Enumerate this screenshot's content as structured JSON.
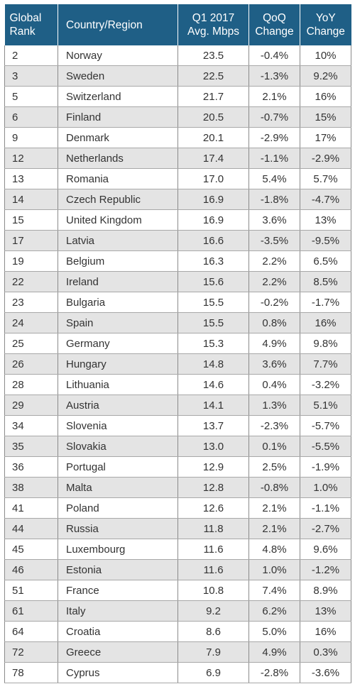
{
  "headers": {
    "rank": [
      "Global",
      "Rank"
    ],
    "country": "Country/Region",
    "speed": [
      "Q1 2017",
      "Avg. Mbps"
    ],
    "qoq": [
      "QoQ",
      "Change"
    ],
    "yoy": [
      "YoY",
      "Change"
    ]
  },
  "rows": [
    {
      "rank": "2",
      "country": "Norway",
      "speed": "23.5",
      "qoq": "-0.4%",
      "yoy": "10%"
    },
    {
      "rank": "3",
      "country": "Sweden",
      "speed": "22.5",
      "qoq": "-1.3%",
      "yoy": "9.2%"
    },
    {
      "rank": "5",
      "country": "Switzerland",
      "speed": "21.7",
      "qoq": "2.1%",
      "yoy": "16%"
    },
    {
      "rank": "6",
      "country": "Finland",
      "speed": "20.5",
      "qoq": "-0.7%",
      "yoy": "15%"
    },
    {
      "rank": "9",
      "country": "Denmark",
      "speed": "20.1",
      "qoq": "-2.9%",
      "yoy": "17%"
    },
    {
      "rank": "12",
      "country": "Netherlands",
      "speed": "17.4",
      "qoq": "-1.1%",
      "yoy": "-2.9%"
    },
    {
      "rank": "13",
      "country": "Romania",
      "speed": "17.0",
      "qoq": "5.4%",
      "yoy": "5.7%"
    },
    {
      "rank": "14",
      "country": "Czech Republic",
      "speed": "16.9",
      "qoq": "-1.8%",
      "yoy": "-4.7%"
    },
    {
      "rank": "15",
      "country": "United Kingdom",
      "speed": "16.9",
      "qoq": "3.6%",
      "yoy": "13%"
    },
    {
      "rank": "17",
      "country": "Latvia",
      "speed": "16.6",
      "qoq": "-3.5%",
      "yoy": "-9.5%"
    },
    {
      "rank": "19",
      "country": "Belgium",
      "speed": "16.3",
      "qoq": "2.2%",
      "yoy": "6.5%"
    },
    {
      "rank": "22",
      "country": "Ireland",
      "speed": "15.6",
      "qoq": "2.2%",
      "yoy": "8.5%"
    },
    {
      "rank": "23",
      "country": "Bulgaria",
      "speed": "15.5",
      "qoq": "-0.2%",
      "yoy": "-1.7%"
    },
    {
      "rank": "24",
      "country": "Spain",
      "speed": "15.5",
      "qoq": "0.8%",
      "yoy": "16%"
    },
    {
      "rank": "25",
      "country": "Germany",
      "speed": "15.3",
      "qoq": "4.9%",
      "yoy": "9.8%"
    },
    {
      "rank": "26",
      "country": "Hungary",
      "speed": "14.8",
      "qoq": "3.6%",
      "yoy": "7.7%"
    },
    {
      "rank": "28",
      "country": "Lithuania",
      "speed": "14.6",
      "qoq": "0.4%",
      "yoy": "-3.2%"
    },
    {
      "rank": "29",
      "country": "Austria",
      "speed": "14.1",
      "qoq": "1.3%",
      "yoy": "5.1%"
    },
    {
      "rank": "34",
      "country": "Slovenia",
      "speed": "13.7",
      "qoq": "-2.3%",
      "yoy": "-5.7%"
    },
    {
      "rank": "35",
      "country": "Slovakia",
      "speed": "13.0",
      "qoq": "0.1%",
      "yoy": "-5.5%"
    },
    {
      "rank": "36",
      "country": "Portugal",
      "speed": "12.9",
      "qoq": "2.5%",
      "yoy": "-1.9%"
    },
    {
      "rank": "38",
      "country": "Malta",
      "speed": "12.8",
      "qoq": "-0.8%",
      "yoy": "1.0%"
    },
    {
      "rank": "41",
      "country": "Poland",
      "speed": "12.6",
      "qoq": "2.1%",
      "yoy": "-1.1%"
    },
    {
      "rank": "44",
      "country": "Russia",
      "speed": "11.8",
      "qoq": "2.1%",
      "yoy": "-2.7%"
    },
    {
      "rank": "45",
      "country": "Luxembourg",
      "speed": "11.6",
      "qoq": "4.8%",
      "yoy": "9.6%"
    },
    {
      "rank": "46",
      "country": "Estonia",
      "speed": "11.6",
      "qoq": "1.0%",
      "yoy": "-1.2%"
    },
    {
      "rank": "51",
      "country": "France",
      "speed": "10.8",
      "qoq": "7.4%",
      "yoy": "8.9%"
    },
    {
      "rank": "61",
      "country": "Italy",
      "speed": "9.2",
      "qoq": "6.2%",
      "yoy": "13%"
    },
    {
      "rank": "64",
      "country": "Croatia",
      "speed": "8.6",
      "qoq": "5.0%",
      "yoy": "16%"
    },
    {
      "rank": "72",
      "country": "Greece",
      "speed": "7.9",
      "qoq": "4.9%",
      "yoy": "0.3%"
    },
    {
      "rank": "78",
      "country": "Cyprus",
      "speed": "6.9",
      "qoq": "-2.8%",
      "yoy": "-3.6%"
    }
  ],
  "colors": {
    "header_bg": "#1f5f86",
    "header_text": "#ffffff",
    "row_alt_bg": "#e4e4e4"
  }
}
